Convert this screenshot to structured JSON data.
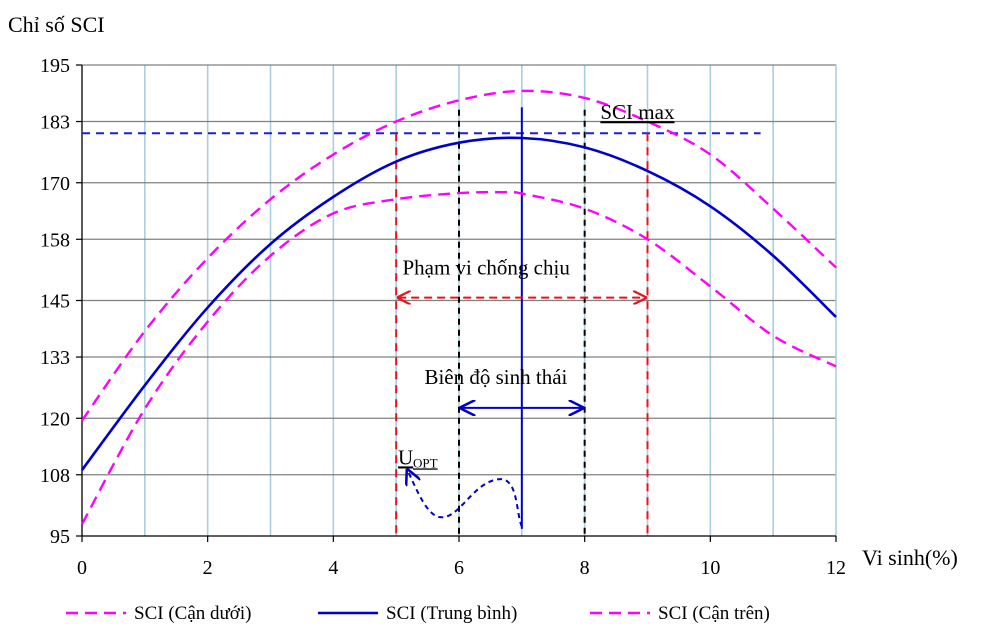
{
  "chart_data": {
    "type": "line",
    "ylabel": "Chỉ số SCI",
    "xlabel": "Vi sinh(%)",
    "xlim": [
      0,
      12
    ],
    "ylim": [
      95,
      195
    ],
    "xticks": [
      "0",
      "2",
      "4",
      "6",
      "8",
      "10",
      "12"
    ],
    "yticks": [
      "95",
      "108",
      "120",
      "133",
      "145",
      "158",
      "170",
      "183",
      "195"
    ],
    "grid": "on",
    "legend_position": "bottom",
    "series": [
      {
        "name": "SCI (Cận dưới)",
        "style": "dashed",
        "color": "#ff00ff",
        "x": [
          0,
          1,
          2,
          3,
          4,
          5,
          6,
          6.7,
          7,
          8,
          9,
          10,
          11,
          12
        ],
        "y": [
          97.5,
          122,
          140.5,
          154.5,
          163.5,
          166.5,
          167.8,
          168,
          167.7,
          164.5,
          158,
          148,
          137.5,
          131
        ]
      },
      {
        "name": "SCI (Trung bình)",
        "style": "solid",
        "color": "#0000cc",
        "x": [
          0,
          1,
          2,
          3,
          4,
          5,
          6,
          7,
          8,
          9,
          10,
          11,
          12
        ],
        "y": [
          109,
          127,
          143.5,
          157,
          167,
          174.5,
          178.5,
          179.5,
          177.5,
          172.5,
          165,
          154.5,
          141.5
        ]
      },
      {
        "name": "SCI (Cận trên)",
        "style": "dashed",
        "color": "#ff00ff",
        "x": [
          0,
          1,
          2,
          3,
          4,
          5,
          6,
          7,
          8,
          9,
          10,
          11,
          12
        ],
        "y": [
          119.5,
          138.5,
          154,
          166.5,
          176,
          183,
          187.5,
          189.5,
          188,
          183,
          176,
          164.5,
          152
        ]
      }
    ],
    "annotations": {
      "sci_max_label": "SCI max",
      "sci_max_value": 180.5,
      "tolerance_label": "Phạm vi chống chịu",
      "tolerance_range": [
        5,
        9
      ],
      "ecological_label": "Biên độ sinh thái",
      "ecological_range": [
        6,
        8
      ],
      "optimum_x": 7,
      "uopt_label_main": "U",
      "uopt_label_sub": "OPT"
    }
  },
  "colors": {
    "grid_vertical": "#a9cfe0",
    "grid_horizontal": "#808080",
    "lower_upper": "#ff00ff",
    "mean": "#0000cc",
    "sci_max_line": "#1f1fd6",
    "tolerance": "#e8141b",
    "ecological_bounds": "#000000"
  }
}
